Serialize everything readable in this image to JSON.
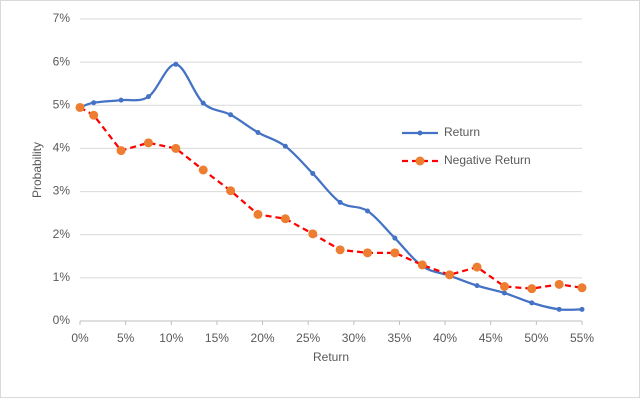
{
  "chart_data": {
    "type": "line",
    "x_label": "Return",
    "y_label": "Probability",
    "x": [
      0,
      1.5,
      4.5,
      7.5,
      10.5,
      13.5,
      16.5,
      19.5,
      22.5,
      25.5,
      28.5,
      31.5,
      34.5,
      37.5,
      40.5,
      43.5,
      46.5,
      49.5,
      52.5,
      55
    ],
    "series": [
      {
        "name": "Return",
        "color": "#4472c4",
        "smooth": true,
        "dashed": false,
        "values": [
          4.95,
          5.06,
          5.12,
          5.2,
          5.95,
          5.05,
          4.78,
          4.37,
          4.05,
          3.42,
          2.75,
          2.55,
          1.92,
          1.27,
          1.05,
          0.82,
          0.65,
          0.42,
          0.27,
          0.27
        ]
      },
      {
        "name": "Negative Return",
        "color": "#ed7d31",
        "line_color": "#ff0000",
        "smooth": false,
        "dashed": true,
        "values": [
          4.95,
          4.77,
          3.95,
          4.13,
          4.0,
          3.5,
          3.02,
          2.47,
          2.37,
          2.02,
          1.65,
          1.58,
          1.58,
          1.3,
          1.07,
          1.25,
          0.8,
          0.75,
          0.85,
          0.77
        ]
      }
    ],
    "xlim": [
      0,
      55
    ],
    "xticks": [
      {
        "value": 0,
        "label": "0%"
      },
      {
        "value": 5,
        "label": "5%"
      },
      {
        "value": 10,
        "label": "10%"
      },
      {
        "value": 15,
        "label": "15%"
      },
      {
        "value": 20,
        "label": "20%"
      },
      {
        "value": 25,
        "label": "25%"
      },
      {
        "value": 30,
        "label": "30%"
      },
      {
        "value": 35,
        "label": "35%"
      },
      {
        "value": 40,
        "label": "40%"
      },
      {
        "value": 45,
        "label": "45%"
      },
      {
        "value": 50,
        "label": "50%"
      },
      {
        "value": 55,
        "label": "55%"
      }
    ],
    "ylim": [
      0,
      7
    ],
    "yticks": [
      {
        "value": 0,
        "label": "0%"
      },
      {
        "value": 1,
        "label": "1%"
      },
      {
        "value": 2,
        "label": "2%"
      },
      {
        "value": 3,
        "label": "3%"
      },
      {
        "value": 4,
        "label": "4%"
      },
      {
        "value": 5,
        "label": "5%"
      },
      {
        "value": 6,
        "label": "6%"
      },
      {
        "value": 7,
        "label": "7%"
      }
    ],
    "grid": true,
    "legend": "right"
  }
}
